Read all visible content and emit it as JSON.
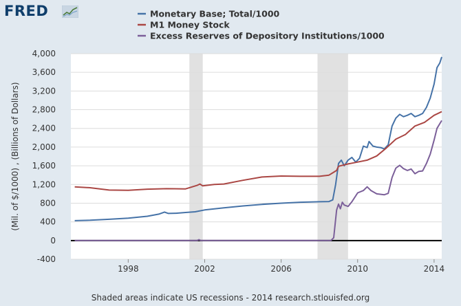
{
  "logo": {
    "text": "FRED"
  },
  "footer": {
    "text": "Shaded areas indicate US recessions - 2014 research.stlouisfed.org"
  },
  "chart_data": {
    "type": "line",
    "ylabel": "(Mil. of $/1000) , (Billions of Dollars)",
    "ylim": [
      -400,
      4000
    ],
    "yticks": [
      -400,
      0,
      400,
      800,
      1200,
      1600,
      2000,
      2400,
      2800,
      3200,
      3600,
      4000
    ],
    "yticklabels": [
      "-400",
      "0",
      "400",
      "800",
      "1,200",
      "1,600",
      "2,000",
      "2,400",
      "2,800",
      "3,200",
      "3,600",
      "4,000"
    ],
    "xlim": [
      1995.0,
      2014.4
    ],
    "xticks": [
      1998,
      2002,
      2006,
      2010,
      2014
    ],
    "xticklabels": [
      "1998",
      "2002",
      "2006",
      "2010",
      "2014"
    ],
    "grid": true,
    "legend_position": "top",
    "recessions": [
      [
        2001.2,
        2001.9
      ],
      [
        2007.9,
        2009.5
      ]
    ],
    "series": [
      {
        "name": "Monetary Base; Total/1000",
        "color": "#4572a7",
        "points": [
          [
            1995.2,
            425
          ],
          [
            1996.0,
            435
          ],
          [
            1997.0,
            455
          ],
          [
            1998.0,
            478
          ],
          [
            1999.0,
            520
          ],
          [
            1999.6,
            565
          ],
          [
            1999.9,
            610
          ],
          [
            2000.1,
            580
          ],
          [
            2000.5,
            585
          ],
          [
            2001.0,
            600
          ],
          [
            2001.5,
            615
          ],
          [
            2002.0,
            655
          ],
          [
            2003.0,
            700
          ],
          [
            2004.0,
            740
          ],
          [
            2005.0,
            775
          ],
          [
            2006.0,
            800
          ],
          [
            2007.0,
            820
          ],
          [
            2008.0,
            830
          ],
          [
            2008.5,
            835
          ],
          [
            2008.7,
            870
          ],
          [
            2008.85,
            1200
          ],
          [
            2009.0,
            1650
          ],
          [
            2009.15,
            1720
          ],
          [
            2009.3,
            1600
          ],
          [
            2009.5,
            1720
          ],
          [
            2009.7,
            1780
          ],
          [
            2009.9,
            1680
          ],
          [
            2010.1,
            1760
          ],
          [
            2010.3,
            2020
          ],
          [
            2010.5,
            1990
          ],
          [
            2010.6,
            2120
          ],
          [
            2010.8,
            2020
          ],
          [
            2011.0,
            2000
          ],
          [
            2011.2,
            1990
          ],
          [
            2011.4,
            1960
          ],
          [
            2011.6,
            2050
          ],
          [
            2011.8,
            2450
          ],
          [
            2012.0,
            2620
          ],
          [
            2012.2,
            2700
          ],
          [
            2012.4,
            2650
          ],
          [
            2012.6,
            2680
          ],
          [
            2012.8,
            2720
          ],
          [
            2013.0,
            2650
          ],
          [
            2013.2,
            2680
          ],
          [
            2013.4,
            2720
          ],
          [
            2013.6,
            2850
          ],
          [
            2013.8,
            3050
          ],
          [
            2014.0,
            3350
          ],
          [
            2014.15,
            3700
          ],
          [
            2014.3,
            3800
          ],
          [
            2014.4,
            3930
          ]
        ]
      },
      {
        "name": "M1 Money Stock",
        "color": "#aa4643",
        "points": [
          [
            1995.2,
            1150
          ],
          [
            1996.0,
            1130
          ],
          [
            1997.0,
            1080
          ],
          [
            1998.0,
            1075
          ],
          [
            1999.0,
            1100
          ],
          [
            2000.0,
            1110
          ],
          [
            2001.0,
            1105
          ],
          [
            2001.6,
            1180
          ],
          [
            2001.75,
            1210
          ],
          [
            2001.9,
            1170
          ],
          [
            2002.5,
            1200
          ],
          [
            2003.0,
            1210
          ],
          [
            2004.0,
            1290
          ],
          [
            2005.0,
            1360
          ],
          [
            2006.0,
            1380
          ],
          [
            2007.0,
            1375
          ],
          [
            2008.0,
            1375
          ],
          [
            2008.5,
            1400
          ],
          [
            2008.9,
            1500
          ],
          [
            2009.0,
            1590
          ],
          [
            2009.5,
            1640
          ],
          [
            2010.0,
            1680
          ],
          [
            2010.5,
            1720
          ],
          [
            2011.0,
            1810
          ],
          [
            2011.5,
            1980
          ],
          [
            2012.0,
            2170
          ],
          [
            2012.5,
            2270
          ],
          [
            2013.0,
            2450
          ],
          [
            2013.5,
            2530
          ],
          [
            2014.0,
            2680
          ],
          [
            2014.4,
            2760
          ]
        ]
      },
      {
        "name": "Excess Reserves of Depository Institutions/1000",
        "color": "#7b5f99",
        "points": [
          [
            1995.2,
            0
          ],
          [
            2001.6,
            0
          ],
          [
            2001.7,
            20
          ],
          [
            2001.8,
            0
          ],
          [
            2008.6,
            0
          ],
          [
            2008.75,
            60
          ],
          [
            2008.9,
            650
          ],
          [
            2009.0,
            780
          ],
          [
            2009.1,
            680
          ],
          [
            2009.2,
            820
          ],
          [
            2009.3,
            760
          ],
          [
            2009.5,
            730
          ],
          [
            2009.7,
            830
          ],
          [
            2010.0,
            1020
          ],
          [
            2010.3,
            1070
          ],
          [
            2010.5,
            1150
          ],
          [
            2010.7,
            1070
          ],
          [
            2011.0,
            1000
          ],
          [
            2011.4,
            980
          ],
          [
            2011.6,
            1010
          ],
          [
            2011.8,
            1350
          ],
          [
            2012.0,
            1550
          ],
          [
            2012.2,
            1610
          ],
          [
            2012.4,
            1540
          ],
          [
            2012.6,
            1500
          ],
          [
            2012.8,
            1530
          ],
          [
            2013.0,
            1430
          ],
          [
            2013.2,
            1480
          ],
          [
            2013.4,
            1490
          ],
          [
            2013.6,
            1650
          ],
          [
            2013.8,
            1850
          ],
          [
            2014.0,
            2150
          ],
          [
            2014.15,
            2400
          ],
          [
            2014.3,
            2500
          ],
          [
            2014.4,
            2570
          ]
        ]
      }
    ]
  }
}
